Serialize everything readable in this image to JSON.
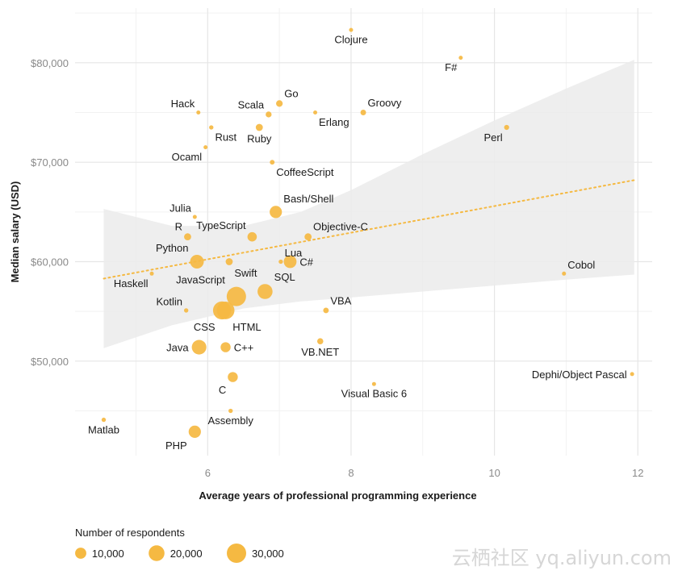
{
  "chart_data": {
    "type": "scatter",
    "xlabel": "Average years of professional programming experience",
    "ylabel": "Median salary (USD)",
    "xlim": [
      4.15,
      12.2
    ],
    "ylim": [
      40500,
      85500
    ],
    "x_ticks": [
      6,
      8,
      10,
      12
    ],
    "x_tick_labels": [
      "6",
      "8",
      "10",
      "12"
    ],
    "y_ticks": [
      50000,
      60000,
      70000,
      80000
    ],
    "y_tick_labels": [
      "$50,000",
      "$60,000",
      "$70,000",
      "$80,000"
    ],
    "grid": true,
    "point_color": "#F5B942",
    "band_color": "#ebebeb",
    "trend_color": "#F5B942",
    "trend": {
      "x_start": 4.55,
      "y_start": 58300,
      "x_end": 11.95,
      "y_end": 68200,
      "band_upper": [
        [
          4.55,
          65300
        ],
        [
          5.5,
          63600
        ],
        [
          6.5,
          63600
        ],
        [
          7.3,
          65000
        ],
        [
          8.0,
          67200
        ],
        [
          9.0,
          70800
        ],
        [
          10.0,
          74200
        ],
        [
          11.0,
          77400
        ],
        [
          11.95,
          80300
        ]
      ],
      "band_lower": [
        [
          4.55,
          51300
        ],
        [
          5.5,
          53600
        ],
        [
          6.5,
          55300
        ],
        [
          7.3,
          56000
        ],
        [
          8.0,
          56400
        ],
        [
          9.0,
          57000
        ],
        [
          10.0,
          57600
        ],
        [
          11.0,
          58200
        ],
        [
          11.95,
          58700
        ]
      ]
    },
    "points": [
      {
        "name": "Clojure",
        "x": 8.0,
        "y": 83300,
        "n": 1000,
        "label_pos": "bottom"
      },
      {
        "name": "F#",
        "x": 9.53,
        "y": 80500,
        "n": 1200,
        "label_pos": "bottom-left"
      },
      {
        "name": "Hack",
        "x": 5.87,
        "y": 75000,
        "n": 300,
        "label_pos": "top-left"
      },
      {
        "name": "Go",
        "x": 7.0,
        "y": 75900,
        "n": 3500,
        "label_pos": "top-right"
      },
      {
        "name": "Scala",
        "x": 6.85,
        "y": 74800,
        "n": 2800,
        "label_pos": "top-left"
      },
      {
        "name": "Groovy",
        "x": 8.17,
        "y": 75000,
        "n": 2500,
        "label_pos": "top-right"
      },
      {
        "name": "Erlang",
        "x": 7.5,
        "y": 75000,
        "n": 600,
        "label_pos": "bottom-right"
      },
      {
        "name": "Rust",
        "x": 6.05,
        "y": 73500,
        "n": 1500,
        "label_pos": "bottom-right"
      },
      {
        "name": "Ruby",
        "x": 6.72,
        "y": 73500,
        "n": 4000,
        "label_pos": "bottom"
      },
      {
        "name": "Perl",
        "x": 10.17,
        "y": 73500,
        "n": 2000,
        "label_pos": "bottom-left"
      },
      {
        "name": "Ocaml",
        "x": 5.97,
        "y": 71500,
        "n": 400,
        "label_pos": "bottom-left"
      },
      {
        "name": "CoffeeScript",
        "x": 6.9,
        "y": 70000,
        "n": 1800,
        "label_pos": "bottom-right"
      },
      {
        "name": "Bash/Shell",
        "x": 6.95,
        "y": 65000,
        "n": 12000,
        "label_pos": "top-right"
      },
      {
        "name": "Julia",
        "x": 5.82,
        "y": 64500,
        "n": 400,
        "label_pos": "top-left"
      },
      {
        "name": "R",
        "x": 5.72,
        "y": 62500,
        "n": 4000,
        "label_pos": "top-left"
      },
      {
        "name": "TypeScript",
        "x": 6.62,
        "y": 62500,
        "n": 7000,
        "label_pos": "top-left"
      },
      {
        "name": "Objective-C",
        "x": 7.4,
        "y": 62500,
        "n": 4000,
        "label_pos": "top-right"
      },
      {
        "name": "Python",
        "x": 5.85,
        "y": 60000,
        "n": 15000,
        "label_pos": "top-left"
      },
      {
        "name": "Swift",
        "x": 6.3,
        "y": 60000,
        "n": 4000,
        "label_pos": "bottom-right"
      },
      {
        "name": "Lua",
        "x": 7.02,
        "y": 60000,
        "n": 1500,
        "label_pos": "top-right"
      },
      {
        "name": "C#",
        "x": 7.15,
        "y": 60000,
        "n": 13000,
        "label_pos": "right"
      },
      {
        "name": "Cobol",
        "x": 10.97,
        "y": 58800,
        "n": 300,
        "label_pos": "top-right"
      },
      {
        "name": "Haskell",
        "x": 5.22,
        "y": 58800,
        "n": 1000,
        "label_pos": "bottom-left"
      },
      {
        "name": "JavaScript",
        "x": 6.4,
        "y": 56500,
        "n": 30000,
        "label_pos": "top-left"
      },
      {
        "name": "SQL",
        "x": 6.8,
        "y": 57000,
        "n": 18000,
        "label_pos": "top-right"
      },
      {
        "name": "Kotlin",
        "x": 5.7,
        "y": 55100,
        "n": 1500,
        "label_pos": "top-left"
      },
      {
        "name": "VBA",
        "x": 7.65,
        "y": 55100,
        "n": 2500,
        "label_pos": "top-right"
      },
      {
        "name": "CSS",
        "x": 6.25,
        "y": 55100,
        "n": 25000,
        "label_pos": "bottom-left"
      },
      {
        "name": "HTML",
        "x": 6.2,
        "y": 55100,
        "n": 26000,
        "label_pos": "bottom-right"
      },
      {
        "name": "VB.NET",
        "x": 7.57,
        "y": 52000,
        "n": 3000,
        "label_pos": "bottom"
      },
      {
        "name": "Java",
        "x": 5.88,
        "y": 51400,
        "n": 17000,
        "label_pos": "left"
      },
      {
        "name": "C++",
        "x": 6.25,
        "y": 51400,
        "n": 8000,
        "label_pos": "right"
      },
      {
        "name": "Dephi/Object Pascal",
        "x": 11.92,
        "y": 48700,
        "n": 800,
        "label_pos": "left"
      },
      {
        "name": "C",
        "x": 6.35,
        "y": 48400,
        "n": 8000,
        "label_pos": "bottom-left"
      },
      {
        "name": "Visual Basic 6",
        "x": 8.32,
        "y": 47700,
        "n": 1200,
        "label_pos": "bottom"
      },
      {
        "name": "Assembly",
        "x": 6.32,
        "y": 45000,
        "n": 1500,
        "label_pos": "bottom"
      },
      {
        "name": "Matlab",
        "x": 4.55,
        "y": 44100,
        "n": 1500,
        "label_pos": "bottom"
      },
      {
        "name": "PHP",
        "x": 5.82,
        "y": 42900,
        "n": 12000,
        "label_pos": "bottom-left"
      }
    ],
    "legend": {
      "title": "Number of respondents",
      "position": "bottom-left",
      "entries": [
        {
          "label": "10,000",
          "n": 10000
        },
        {
          "label": "20,000",
          "n": 20000
        },
        {
          "label": "30,000",
          "n": 30000
        }
      ]
    }
  },
  "watermark": "云栖社区 yq.aliyun.com"
}
